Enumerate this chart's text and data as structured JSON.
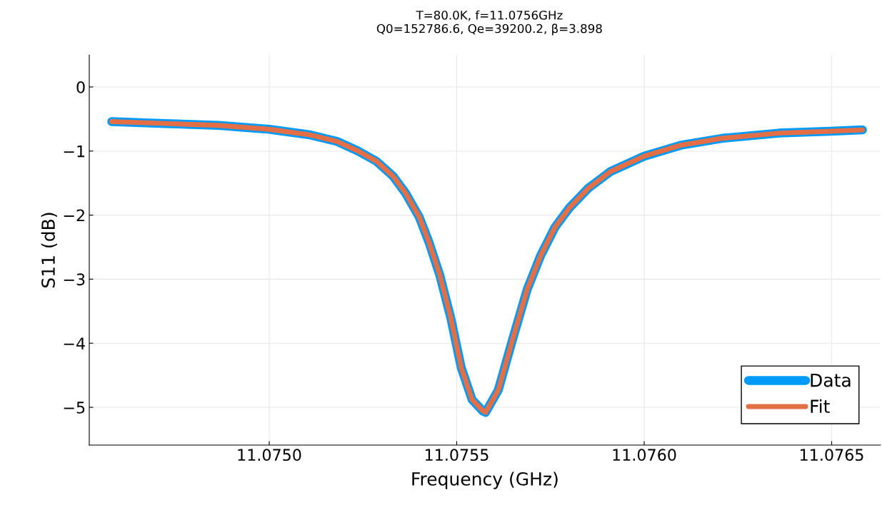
{
  "chart_data": {
    "type": "line",
    "title": "T=80.0K, f=11.0756GHz\nQ0=152786.6, Qe=39200.2, β=3.898",
    "xlabel": "Frequency (GHz)",
    "ylabel": "S11 (dB)",
    "x": [
      11.07458,
      11.074723,
      11.074864,
      11.075,
      11.075111,
      11.075181,
      11.075237,
      11.075286,
      11.07533,
      11.075364,
      11.0754,
      11.075427,
      11.075455,
      11.075484,
      11.075512,
      11.075541,
      11.07557,
      11.075577,
      11.075611,
      11.075649,
      11.075688,
      11.075724,
      11.075762,
      11.0758,
      11.075851,
      11.07591,
      11.076,
      11.076097,
      11.076209,
      11.076359,
      11.076496,
      11.076582
    ],
    "series": [
      {
        "name": "Data",
        "color": "#009af9",
        "values": [
          -0.54,
          -0.57,
          -0.6,
          -0.66,
          -0.75,
          -0.85,
          -1.0,
          -1.16,
          -1.39,
          -1.66,
          -2.03,
          -2.44,
          -2.94,
          -3.6,
          -4.38,
          -4.88,
          -5.06,
          -5.08,
          -4.73,
          -3.94,
          -3.16,
          -2.63,
          -2.19,
          -1.89,
          -1.58,
          -1.32,
          -1.08,
          -0.91,
          -0.8,
          -0.72,
          -0.69,
          -0.67
        ]
      },
      {
        "name": "Fit",
        "color": "#e26f46",
        "values": [
          -0.54,
          -0.57,
          -0.6,
          -0.66,
          -0.75,
          -0.85,
          -1.0,
          -1.16,
          -1.39,
          -1.66,
          -2.03,
          -2.44,
          -2.94,
          -3.6,
          -4.38,
          -4.88,
          -5.06,
          -5.08,
          -4.73,
          -3.94,
          -3.16,
          -2.63,
          -2.19,
          -1.89,
          -1.58,
          -1.32,
          -1.08,
          -0.91,
          -0.8,
          -0.72,
          -0.69,
          -0.67
        ]
      }
    ],
    "xlim": [
      11.07452,
      11.07663
    ],
    "xticks": [
      {
        "value": 11.075,
        "label": "11.0750"
      },
      {
        "value": 11.0755,
        "label": "11.0755"
      },
      {
        "value": 11.076,
        "label": "11.0760"
      },
      {
        "value": 11.0765,
        "label": "11.0765"
      }
    ],
    "ylim": [
      -5.59,
      0.5
    ],
    "yticks": [
      {
        "value": -5,
        "label": "−5"
      },
      {
        "value": -4,
        "label": "−4"
      },
      {
        "value": -3,
        "label": "−3"
      },
      {
        "value": -2,
        "label": "−2"
      },
      {
        "value": -1,
        "label": "−1"
      },
      0
    ],
    "grid": true,
    "legend": "lower right",
    "line_style": "solid",
    "marker": "none"
  }
}
